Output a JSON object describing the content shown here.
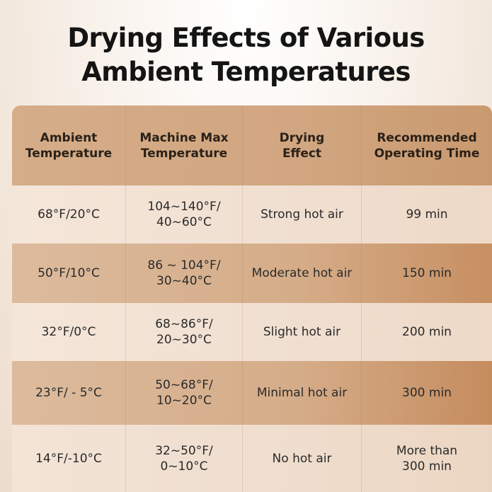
{
  "title": {
    "line1": "Drying Effects of Various",
    "line2": "Ambient Temperatures"
  },
  "table": {
    "headers": [
      {
        "line1": "Ambient",
        "line2": "Temperature"
      },
      {
        "line1": "Machine Max",
        "line2": "Temperature"
      },
      {
        "line1": "Drying",
        "line2": "Effect"
      },
      {
        "line1": "Recommended",
        "line2": "Operating Time"
      }
    ],
    "rows": [
      {
        "ambient": "68°F/20°C",
        "machine_max": {
          "line1": "104~140°F/",
          "line2": "40~60°C"
        },
        "effect": "Strong hot air",
        "time": {
          "line1": "99 min",
          "line2": ""
        }
      },
      {
        "ambient": "50°F/10°C",
        "machine_max": {
          "line1": "86 ~ 104°F/",
          "line2": "30~40°C"
        },
        "effect": "Moderate hot air",
        "time": {
          "line1": "150 min",
          "line2": ""
        }
      },
      {
        "ambient": "32°F/0°C",
        "machine_max": {
          "line1": "68~86°F/",
          "line2": "20~30°C"
        },
        "effect": "Slight hot air",
        "time": {
          "line1": "200 min",
          "line2": ""
        }
      },
      {
        "ambient": "23°F/ - 5°C",
        "machine_max": {
          "line1": "50~68°F/",
          "line2": "10~20°C"
        },
        "effect": "Minimal hot air",
        "time": {
          "line1": "300 min",
          "line2": ""
        }
      },
      {
        "ambient": "14°F/-10°C",
        "machine_max": {
          "line1": "32~50°F/",
          "line2": "0~10°C"
        },
        "effect": "No hot air",
        "time": {
          "line1": "More than",
          "line2": "300 min"
        }
      }
    ]
  }
}
